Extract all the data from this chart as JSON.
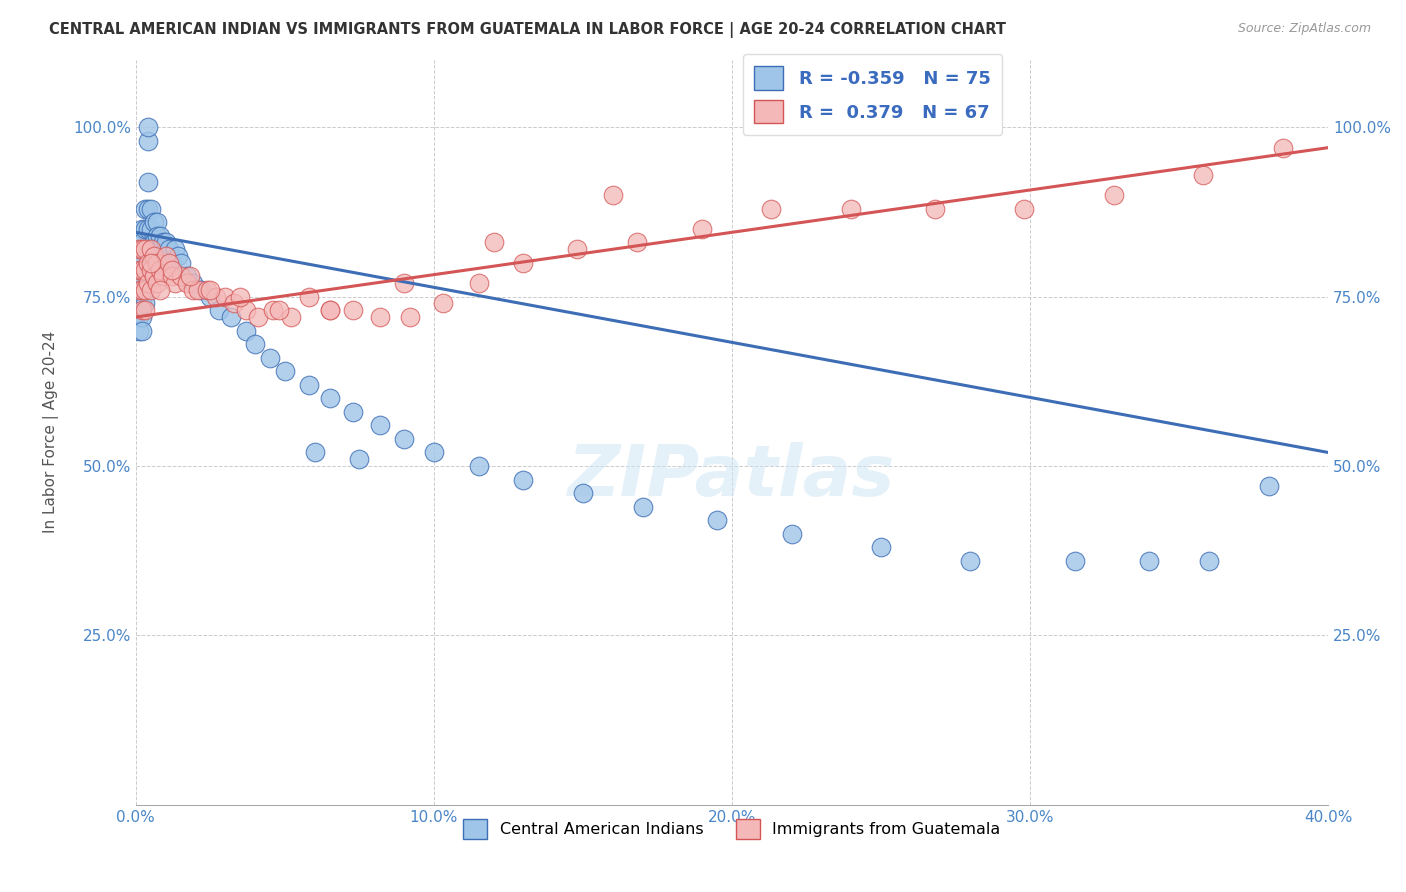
{
  "title": "CENTRAL AMERICAN INDIAN VS IMMIGRANTS FROM GUATEMALA IN LABOR FORCE | AGE 20-24 CORRELATION CHART",
  "source": "Source: ZipAtlas.com",
  "ylabel": "In Labor Force | Age 20-24",
  "xlim": [
    0.0,
    0.4
  ],
  "ylim": [
    0.0,
    1.1
  ],
  "xticks": [
    0.0,
    0.1,
    0.2,
    0.3,
    0.4
  ],
  "yticks": [
    0.0,
    0.25,
    0.5,
    0.75,
    1.0
  ],
  "ytick_labels": [
    "",
    "25.0%",
    "50.0%",
    "75.0%",
    "100.0%"
  ],
  "legend_label1": "Central American Indians",
  "legend_label2": "Immigrants from Guatemala",
  "r1": "-0.359",
  "n1": "75",
  "r2": "0.379",
  "n2": "67",
  "color1": "#9fc5e8",
  "color2": "#f4b8b8",
  "line_color1": "#3d6eb5",
  "line_color2": "#d45555",
  "marker_edge_color1": "#3d6eb5",
  "marker_edge_color2": "#d45555",
  "watermark": "ZIPatlas",
  "blue_x": [
    0.001,
    0.001,
    0.001,
    0.001,
    0.001,
    0.001,
    0.002,
    0.002,
    0.002,
    0.002,
    0.002,
    0.002,
    0.002,
    0.002,
    0.003,
    0.003,
    0.003,
    0.003,
    0.003,
    0.003,
    0.004,
    0.004,
    0.004,
    0.004,
    0.004,
    0.005,
    0.005,
    0.005,
    0.005,
    0.006,
    0.006,
    0.006,
    0.007,
    0.007,
    0.007,
    0.008,
    0.008,
    0.009,
    0.009,
    0.01,
    0.011,
    0.012,
    0.013,
    0.014,
    0.015,
    0.017,
    0.019,
    0.022,
    0.025,
    0.028,
    0.032,
    0.037,
    0.04,
    0.045,
    0.05,
    0.058,
    0.065,
    0.073,
    0.082,
    0.09,
    0.1,
    0.115,
    0.13,
    0.15,
    0.17,
    0.195,
    0.22,
    0.25,
    0.28,
    0.315,
    0.34,
    0.36,
    0.38,
    0.06,
    0.075
  ],
  "blue_y": [
    0.82,
    0.79,
    0.76,
    0.74,
    0.72,
    0.7,
    0.85,
    0.83,
    0.8,
    0.78,
    0.76,
    0.74,
    0.72,
    0.7,
    0.88,
    0.85,
    0.82,
    0.79,
    0.76,
    0.74,
    0.98,
    1.0,
    0.92,
    0.88,
    0.85,
    0.88,
    0.85,
    0.82,
    0.79,
    0.86,
    0.83,
    0.8,
    0.86,
    0.84,
    0.82,
    0.84,
    0.82,
    0.83,
    0.8,
    0.83,
    0.82,
    0.8,
    0.82,
    0.81,
    0.8,
    0.78,
    0.77,
    0.76,
    0.75,
    0.73,
    0.72,
    0.7,
    0.68,
    0.66,
    0.64,
    0.62,
    0.6,
    0.58,
    0.56,
    0.54,
    0.52,
    0.5,
    0.48,
    0.46,
    0.44,
    0.42,
    0.4,
    0.38,
    0.36,
    0.36,
    0.36,
    0.36,
    0.47,
    0.52,
    0.51
  ],
  "pink_x": [
    0.001,
    0.001,
    0.001,
    0.002,
    0.002,
    0.002,
    0.002,
    0.003,
    0.003,
    0.003,
    0.003,
    0.004,
    0.004,
    0.005,
    0.005,
    0.005,
    0.006,
    0.006,
    0.007,
    0.007,
    0.008,
    0.009,
    0.01,
    0.011,
    0.012,
    0.013,
    0.015,
    0.017,
    0.019,
    0.021,
    0.024,
    0.027,
    0.03,
    0.033,
    0.037,
    0.041,
    0.046,
    0.052,
    0.058,
    0.065,
    0.073,
    0.082,
    0.092,
    0.103,
    0.115,
    0.13,
    0.148,
    0.168,
    0.19,
    0.213,
    0.24,
    0.268,
    0.298,
    0.328,
    0.358,
    0.385,
    0.005,
    0.008,
    0.012,
    0.018,
    0.025,
    0.035,
    0.048,
    0.065,
    0.09,
    0.12,
    0.16
  ],
  "pink_y": [
    0.82,
    0.79,
    0.76,
    0.82,
    0.79,
    0.76,
    0.73,
    0.82,
    0.79,
    0.76,
    0.73,
    0.8,
    0.77,
    0.82,
    0.79,
    0.76,
    0.81,
    0.78,
    0.8,
    0.77,
    0.79,
    0.78,
    0.81,
    0.8,
    0.78,
    0.77,
    0.78,
    0.77,
    0.76,
    0.76,
    0.76,
    0.75,
    0.75,
    0.74,
    0.73,
    0.72,
    0.73,
    0.72,
    0.75,
    0.73,
    0.73,
    0.72,
    0.72,
    0.74,
    0.77,
    0.8,
    0.82,
    0.83,
    0.85,
    0.88,
    0.88,
    0.88,
    0.88,
    0.9,
    0.93,
    0.97,
    0.8,
    0.76,
    0.79,
    0.78,
    0.76,
    0.75,
    0.73,
    0.73,
    0.77,
    0.83,
    0.9
  ]
}
